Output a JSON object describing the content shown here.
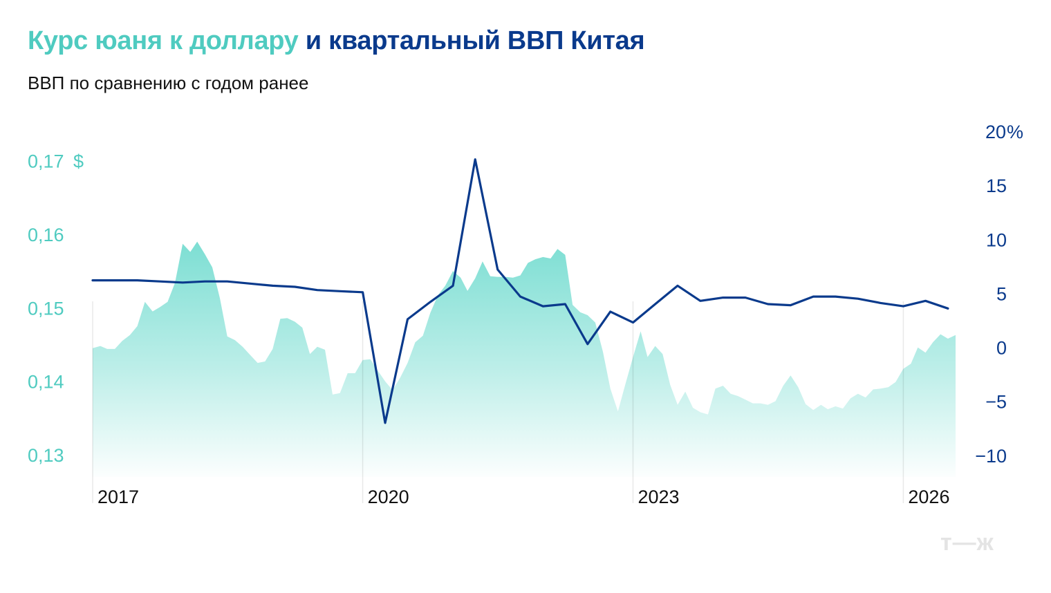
{
  "title_part1": "Курс юаня к доллару",
  "title_part2": "и квартальный ВВП Китая",
  "subtitle": "ВВП по сравнению с годом ранее",
  "logo": "т—ж",
  "colors": {
    "area": "#5cd6c8",
    "line": "#0a3a8c",
    "text_left": "#4fcbc0",
    "text_right": "#0a3a8c"
  },
  "chart_data": {
    "type": "area+line",
    "x_ticks": [
      "2017",
      "2020",
      "2023",
      "2026"
    ],
    "left_axis": {
      "unit_label": "$",
      "ticks": [
        "0,17",
        "0,16",
        "0,15",
        "0,14",
        "0,13"
      ],
      "range": [
        0.127,
        0.174
      ]
    },
    "right_axis": {
      "unit_label": "%",
      "ticks": [
        "20",
        "15",
        "10",
        "5",
        "0",
        "−5",
        "−10"
      ],
      "range": [
        -12,
        20
      ]
    },
    "series": [
      {
        "axis": "left",
        "style": "area",
        "points": [
          [
            "2017-01-01",
            0.1445
          ],
          [
            "2017-02-01",
            0.1448
          ],
          [
            "2017-03-01",
            0.1444
          ],
          [
            "2017-04-01",
            0.1444
          ],
          [
            "2017-05-01",
            0.1455
          ],
          [
            "2017-06-01",
            0.1463
          ],
          [
            "2017-07-01",
            0.1475
          ],
          [
            "2017-08-01",
            0.1508
          ],
          [
            "2017-09-01",
            0.1495
          ],
          [
            "2017-10-01",
            0.1501
          ],
          [
            "2017-11-01",
            0.1508
          ],
          [
            "2017-12-01",
            0.1534
          ],
          [
            "2018-01-01",
            0.1587
          ],
          [
            "2018-02-01",
            0.1576
          ],
          [
            "2018-03-01",
            0.159
          ],
          [
            "2018-04-01",
            0.1573
          ],
          [
            "2018-05-01",
            0.1555
          ],
          [
            "2018-06-01",
            0.1513
          ],
          [
            "2018-07-01",
            0.1461
          ],
          [
            "2018-08-01",
            0.1456
          ],
          [
            "2018-09-01",
            0.1447
          ],
          [
            "2018-10-01",
            0.1436
          ],
          [
            "2018-11-01",
            0.1425
          ],
          [
            "2018-12-01",
            0.1427
          ],
          [
            "2019-01-01",
            0.1444
          ],
          [
            "2019-02-01",
            0.1485
          ],
          [
            "2019-03-01",
            0.1486
          ],
          [
            "2019-04-01",
            0.1481
          ],
          [
            "2019-05-01",
            0.1473
          ],
          [
            "2019-06-01",
            0.1437
          ],
          [
            "2019-07-01",
            0.1447
          ],
          [
            "2019-08-01",
            0.1443
          ],
          [
            "2019-09-01",
            0.1382
          ],
          [
            "2019-10-01",
            0.1384
          ],
          [
            "2019-11-01",
            0.1411
          ],
          [
            "2019-12-01",
            0.1411
          ],
          [
            "2020-01-01",
            0.1429
          ],
          [
            "2020-02-01",
            0.143
          ],
          [
            "2020-03-01",
            0.1415
          ],
          [
            "2020-04-01",
            0.14
          ],
          [
            "2020-05-01",
            0.1388
          ],
          [
            "2020-06-01",
            0.1405
          ],
          [
            "2020-07-01",
            0.1425
          ],
          [
            "2020-08-01",
            0.1453
          ],
          [
            "2020-09-01",
            0.1462
          ],
          [
            "2020-10-01",
            0.1493
          ],
          [
            "2020-11-01",
            0.1517
          ],
          [
            "2020-12-01",
            0.153
          ],
          [
            "2021-01-01",
            0.155
          ],
          [
            "2021-02-01",
            0.1541
          ],
          [
            "2021-03-01",
            0.1523
          ],
          [
            "2021-04-01",
            0.154
          ],
          [
            "2021-05-01",
            0.1563
          ],
          [
            "2021-06-01",
            0.1543
          ],
          [
            "2021-07-01",
            0.1542
          ],
          [
            "2021-08-01",
            0.1542
          ],
          [
            "2021-09-01",
            0.1541
          ],
          [
            "2021-10-01",
            0.1544
          ],
          [
            "2021-11-01",
            0.1561
          ],
          [
            "2021-12-01",
            0.1566
          ],
          [
            "2022-01-01",
            0.1569
          ],
          [
            "2022-02-01",
            0.1567
          ],
          [
            "2022-03-01",
            0.158
          ],
          [
            "2022-04-01",
            0.1572
          ],
          [
            "2022-05-01",
            0.1504
          ],
          [
            "2022-06-01",
            0.1494
          ],
          [
            "2022-07-01",
            0.149
          ],
          [
            "2022-08-01",
            0.148
          ],
          [
            "2022-09-01",
            0.144
          ],
          [
            "2022-10-01",
            0.139
          ],
          [
            "2022-11-01",
            0.1359
          ],
          [
            "2022-12-01",
            0.1396
          ],
          [
            "2023-01-01",
            0.1433
          ],
          [
            "2023-02-01",
            0.1468
          ],
          [
            "2023-03-01",
            0.1433
          ],
          [
            "2023-04-01",
            0.1448
          ],
          [
            "2023-05-01",
            0.1437
          ],
          [
            "2023-06-01",
            0.1395
          ],
          [
            "2023-07-01",
            0.1368
          ],
          [
            "2023-08-01",
            0.1386
          ],
          [
            "2023-09-01",
            0.1364
          ],
          [
            "2023-10-01",
            0.1358
          ],
          [
            "2023-11-01",
            0.1355
          ],
          [
            "2023-12-01",
            0.139
          ],
          [
            "2024-01-01",
            0.1394
          ],
          [
            "2024-02-01",
            0.1383
          ],
          [
            "2024-03-01",
            0.138
          ],
          [
            "2024-04-01",
            0.1375
          ],
          [
            "2024-05-01",
            0.137
          ],
          [
            "2024-06-01",
            0.137
          ],
          [
            "2024-07-01",
            0.1368
          ],
          [
            "2024-08-01",
            0.1373
          ],
          [
            "2024-09-01",
            0.1394
          ],
          [
            "2024-10-01",
            0.1408
          ],
          [
            "2024-11-01",
            0.1392
          ],
          [
            "2024-12-01",
            0.1369
          ],
          [
            "2025-01-01",
            0.1361
          ],
          [
            "2025-02-01",
            0.1368
          ],
          [
            "2025-03-01",
            0.1362
          ],
          [
            "2025-04-01",
            0.1366
          ],
          [
            "2025-05-01",
            0.1363
          ],
          [
            "2025-06-01",
            0.1377
          ],
          [
            "2025-07-01",
            0.1383
          ],
          [
            "2025-08-01",
            0.1378
          ],
          [
            "2025-09-01",
            0.1389
          ],
          [
            "2025-10-01",
            0.139
          ],
          [
            "2025-11-01",
            0.1392
          ],
          [
            "2025-12-01",
            0.1399
          ],
          [
            "2026-01-01",
            0.1417
          ],
          [
            "2026-02-01",
            0.1424
          ],
          [
            "2026-03-01",
            0.1446
          ],
          [
            "2026-04-01",
            0.1439
          ],
          [
            "2026-05-01",
            0.1453
          ],
          [
            "2026-06-01",
            0.1464
          ],
          [
            "2026-07-01",
            0.1458
          ],
          [
            "2026-08-01",
            0.1463
          ]
        ]
      },
      {
        "axis": "right",
        "style": "line",
        "points": [
          [
            "2017-01-01",
            6.2
          ],
          [
            "2017-04-01",
            6.2
          ],
          [
            "2017-07-01",
            6.2
          ],
          [
            "2017-10-01",
            6.1
          ],
          [
            "2018-01-01",
            6.0
          ],
          [
            "2018-04-01",
            6.1
          ],
          [
            "2018-07-01",
            6.1
          ],
          [
            "2018-10-01",
            5.9
          ],
          [
            "2019-01-01",
            5.7
          ],
          [
            "2019-04-01",
            5.6
          ],
          [
            "2019-07-01",
            5.3
          ],
          [
            "2019-10-01",
            5.2
          ],
          [
            "2020-01-01",
            5.1
          ],
          [
            "2020-04-01",
            -7.0
          ],
          [
            "2020-07-01",
            2.6
          ],
          [
            "2020-10-01",
            4.2
          ],
          [
            "2021-01-01",
            5.7
          ],
          [
            "2021-04-01",
            17.4
          ],
          [
            "2021-07-01",
            7.2
          ],
          [
            "2021-10-01",
            4.7
          ],
          [
            "2022-01-01",
            3.8
          ],
          [
            "2022-04-01",
            4.0
          ],
          [
            "2022-07-01",
            0.3
          ],
          [
            "2022-10-01",
            3.3
          ],
          [
            "2023-01-01",
            2.3
          ],
          [
            "2023-04-01",
            4.0
          ],
          [
            "2023-07-01",
            5.7
          ],
          [
            "2023-10-01",
            4.3
          ],
          [
            "2024-01-01",
            4.6
          ],
          [
            "2024-04-01",
            4.6
          ],
          [
            "2024-07-01",
            4.0
          ],
          [
            "2024-10-01",
            3.9
          ],
          [
            "2025-01-01",
            4.7
          ],
          [
            "2025-04-01",
            4.7
          ],
          [
            "2025-07-01",
            4.5
          ],
          [
            "2025-10-01",
            4.1
          ],
          [
            "2026-01-01",
            3.8
          ],
          [
            "2026-04-01",
            4.3
          ],
          [
            "2026-07-01",
            3.6
          ]
        ]
      }
    ],
    "grid": false,
    "legend": "none"
  }
}
